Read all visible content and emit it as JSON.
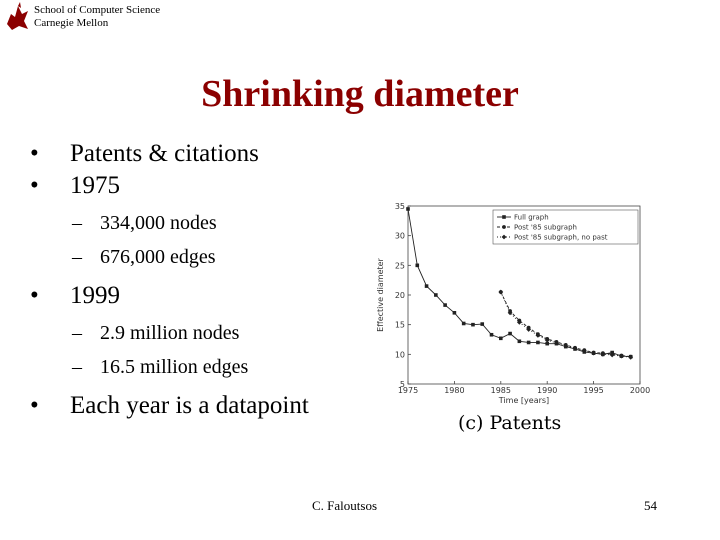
{
  "header": {
    "school": "School of Computer Science",
    "university": "Carnegie Mellon"
  },
  "slide": {
    "title": "Shrinking diameter",
    "bullets": [
      {
        "text": "Patents & citations",
        "sub": []
      },
      {
        "text": "1975",
        "sub": [
          "334,000 nodes",
          "676,000 edges"
        ]
      },
      {
        "text": "1999",
        "sub": [
          "2.9 million nodes",
          "16.5 million edges"
        ]
      },
      {
        "text": "Each year is a datapoint",
        "sub": []
      }
    ],
    "bullet_symbol": "•",
    "sub_symbol": "–"
  },
  "chart_data": {
    "type": "line",
    "xlabel": "Time [years]",
    "ylabel": "Effective diameter",
    "xlim": [
      1975,
      2000
    ],
    "ylim": [
      5,
      35
    ],
    "xticks": [
      1975,
      1980,
      1985,
      1990,
      1995,
      2000
    ],
    "yticks": [
      5,
      10,
      15,
      20,
      25,
      30,
      35
    ],
    "legend_position": "top-right",
    "caption": "(c) Patents",
    "series": [
      {
        "name": "Full graph",
        "marker": "square",
        "x": [
          1975,
          1976,
          1977,
          1978,
          1979,
          1980,
          1981,
          1982,
          1983,
          1984,
          1985,
          1986,
          1987,
          1988,
          1989,
          1990,
          1991,
          1992,
          1993,
          1994,
          1995,
          1996,
          1997,
          1998,
          1999
        ],
        "y": [
          34.5,
          25.0,
          21.5,
          20.0,
          18.3,
          17.0,
          15.2,
          15.0,
          15.1,
          13.3,
          12.7,
          13.5,
          12.2,
          12.0,
          12.0,
          11.8,
          11.8,
          11.3,
          10.9,
          10.4,
          10.2,
          10.0,
          10.3,
          9.7,
          9.6
        ]
      },
      {
        "name": "Post '85 subgraph",
        "marker": "circle",
        "x": [
          1985,
          1986,
          1987,
          1988,
          1989,
          1990,
          1991,
          1992,
          1993,
          1994,
          1995,
          1996,
          1997,
          1998,
          1999
        ],
        "y": [
          20.5,
          17.3,
          15.7,
          14.5,
          13.4,
          12.6,
          12.1,
          11.6,
          11.1,
          10.7,
          10.3,
          10.2,
          10.0,
          9.8,
          9.6
        ]
      },
      {
        "name": "Post '85 subgraph, no past",
        "marker": "diamond",
        "x": [
          1985,
          1986,
          1987,
          1988,
          1989,
          1990,
          1991,
          1992,
          1993,
          1994,
          1995,
          1996,
          1997,
          1998,
          1999
        ],
        "y": [
          20.5,
          17.0,
          15.4,
          14.2,
          13.2,
          12.4,
          11.9,
          11.4,
          11.0,
          10.6,
          10.2,
          10.0,
          9.9,
          9.7,
          9.5
        ]
      }
    ]
  },
  "footer": {
    "author": "C. Faloutsos",
    "page": "54"
  }
}
